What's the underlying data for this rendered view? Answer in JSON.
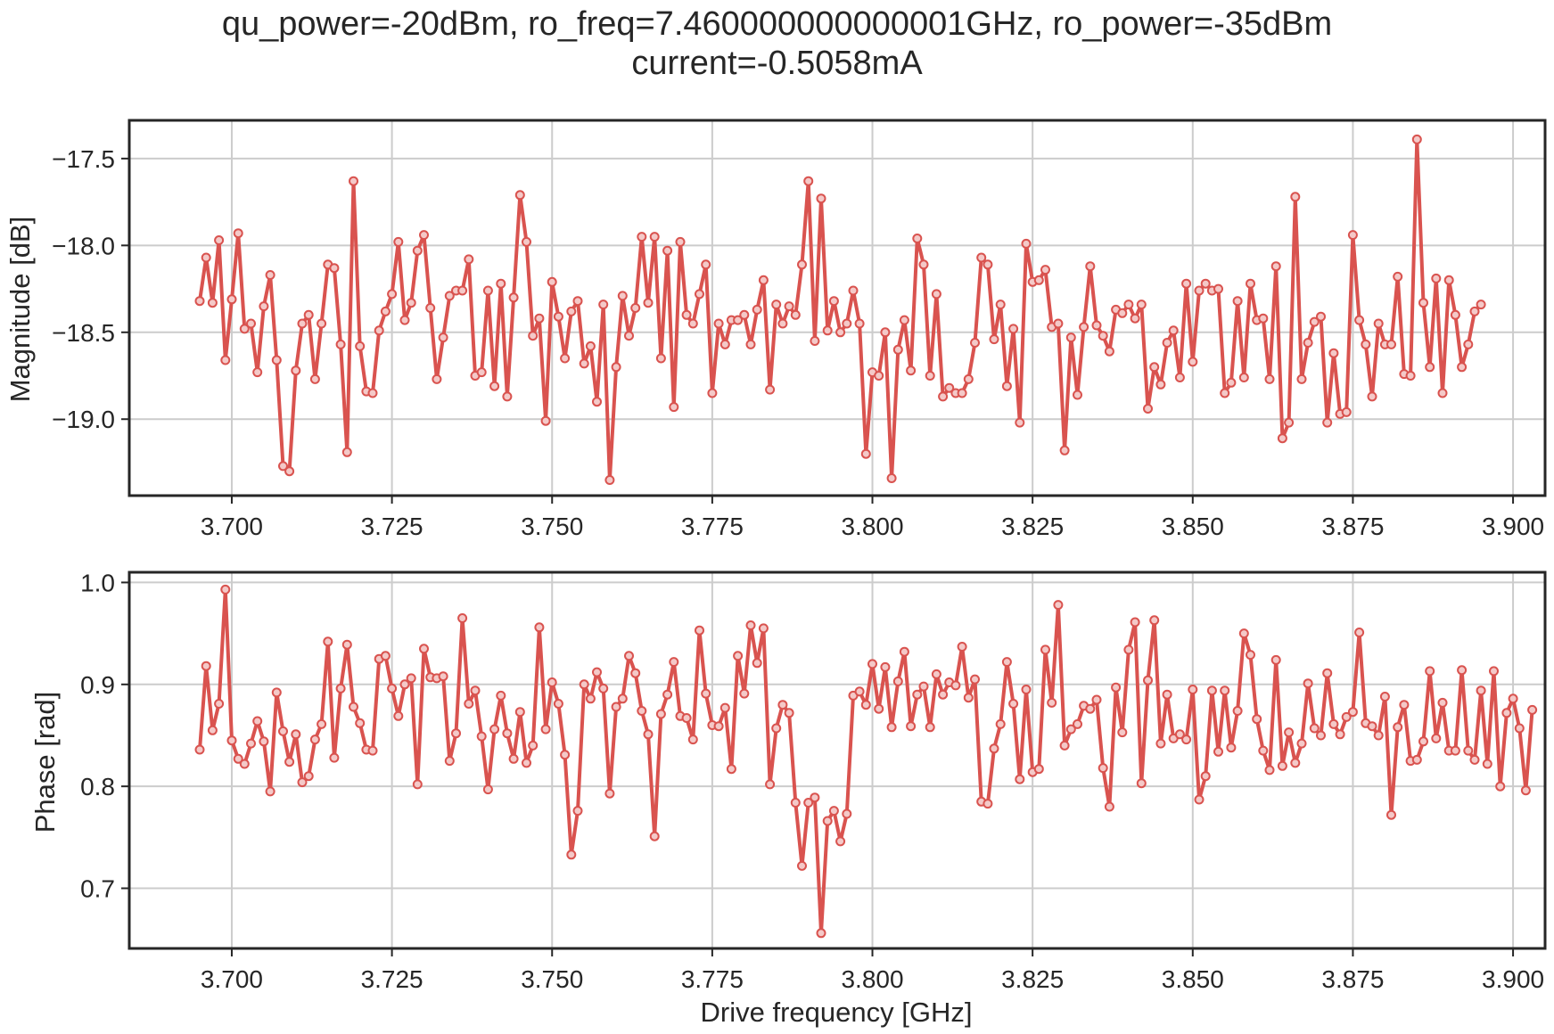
{
  "figure": {
    "title_line1": "qu_power=-20dBm, ro_freq=7.460000000000001GHz, ro_power=-35dBm",
    "title_line2": "current=-0.5058mA"
  },
  "colors": {
    "series": "#d9534f",
    "grid": "#cccccc",
    "frame": "#262626"
  },
  "chart_data": [
    {
      "type": "line",
      "marker": "circle",
      "grid": true,
      "title": "",
      "xlabel": "",
      "ylabel": "Magnitude [dB]",
      "xlim": [
        3.684,
        3.905
      ],
      "ylim": [
        -19.44,
        -17.28
      ],
      "xticks": [
        3.7,
        3.725,
        3.75,
        3.775,
        3.8,
        3.825,
        3.85,
        3.875,
        3.9
      ],
      "xtick_labels": [
        "3.700",
        "3.725",
        "3.750",
        "3.775",
        "3.800",
        "3.825",
        "3.850",
        "3.875",
        "3.900"
      ],
      "yticks": [
        -17.5,
        -18.0,
        -18.5,
        -19.0
      ],
      "ytick_labels": [
        "−17.5",
        "−18.0",
        "−18.5",
        "−19.0"
      ],
      "x_start": 3.695,
      "x_step": 0.001,
      "values": [
        -18.32,
        -18.07,
        -18.33,
        -17.97,
        -18.66,
        -18.31,
        -17.93,
        -18.48,
        -18.45,
        -18.73,
        -18.35,
        -18.17,
        -18.66,
        -19.27,
        -19.3,
        -18.72,
        -18.45,
        -18.4,
        -18.77,
        -18.45,
        -18.11,
        -18.13,
        -18.57,
        -19.19,
        -17.63,
        -18.58,
        -18.84,
        -18.85,
        -18.49,
        -18.38,
        -18.28,
        -17.98,
        -18.43,
        -18.33,
        -18.03,
        -17.94,
        -18.36,
        -18.77,
        -18.53,
        -18.29,
        -18.26,
        -18.26,
        -18.08,
        -18.75,
        -18.73,
        -18.26,
        -18.81,
        -18.22,
        -18.87,
        -18.3,
        -17.71,
        -17.98,
        -18.52,
        -18.42,
        -19.01,
        -18.21,
        -18.41,
        -18.65,
        -18.38,
        -18.32,
        -18.68,
        -18.58,
        -18.9,
        -18.34,
        -19.35,
        -18.7,
        -18.29,
        -18.52,
        -18.36,
        -17.95,
        -18.33,
        -17.95,
        -18.65,
        -18.03,
        -18.93,
        -17.98,
        -18.4,
        -18.45,
        -18.28,
        -18.11,
        -18.85,
        -18.45,
        -18.57,
        -18.43,
        -18.43,
        -18.4,
        -18.57,
        -18.37,
        -18.2,
        -18.83,
        -18.34,
        -18.45,
        -18.35,
        -18.4,
        -18.11,
        -17.63,
        -18.55,
        -17.73,
        -18.49,
        -18.32,
        -18.5,
        -18.45,
        -18.26,
        -18.45,
        -19.2,
        -18.73,
        -18.75,
        -18.5,
        -19.34,
        -18.6,
        -18.43,
        -18.72,
        -17.96,
        -18.11,
        -18.75,
        -18.28,
        -18.87,
        -18.82,
        -18.85,
        -18.85,
        -18.77,
        -18.56,
        -18.07,
        -18.11,
        -18.54,
        -18.34,
        -18.81,
        -18.48,
        -19.02,
        -17.99,
        -18.21,
        -18.2,
        -18.14,
        -18.47,
        -18.45,
        -19.18,
        -18.53,
        -18.86,
        -18.47,
        -18.12,
        -18.46,
        -18.52,
        -18.61,
        -18.37,
        -18.39,
        -18.34,
        -18.42,
        -18.34,
        -18.94,
        -18.7,
        -18.8,
        -18.56,
        -18.49,
        -18.76,
        -18.22,
        -18.67,
        -18.26,
        -18.22,
        -18.26,
        -18.25,
        -18.85,
        -18.79,
        -18.32,
        -18.76,
        -18.22,
        -18.43,
        -18.42,
        -18.77,
        -18.12,
        -19.11,
        -19.02,
        -17.72,
        -18.77,
        -18.56,
        -18.44,
        -18.41,
        -19.02,
        -18.62,
        -18.97,
        -18.96,
        -17.94,
        -18.43,
        -18.57,
        -18.87,
        -18.45,
        -18.57,
        -18.57,
        -18.18,
        -18.74,
        -18.75,
        -17.39,
        -18.33,
        -18.7,
        -18.19,
        -18.85,
        -18.2,
        -18.4,
        -18.7,
        -18.57,
        -18.38,
        -18.34
      ]
    },
    {
      "type": "line",
      "marker": "circle",
      "grid": true,
      "title": "",
      "xlabel": "Drive frequency [GHz]",
      "ylabel": "Phase [rad]",
      "xlim": [
        3.684,
        3.905
      ],
      "ylim": [
        0.641,
        1.01
      ],
      "xticks": [
        3.7,
        3.725,
        3.75,
        3.775,
        3.8,
        3.825,
        3.85,
        3.875,
        3.9
      ],
      "xtick_labels": [
        "3.700",
        "3.725",
        "3.750",
        "3.775",
        "3.800",
        "3.825",
        "3.850",
        "3.875",
        "3.900"
      ],
      "yticks": [
        1.0,
        0.9,
        0.8,
        0.7
      ],
      "ytick_labels": [
        "1.0",
        "0.9",
        "0.8",
        "0.7"
      ],
      "x_start": 3.695,
      "x_step": 0.001,
      "values": [
        0.836,
        0.918,
        0.855,
        0.881,
        0.993,
        0.845,
        0.827,
        0.822,
        0.842,
        0.864,
        0.844,
        0.795,
        0.892,
        0.854,
        0.824,
        0.851,
        0.804,
        0.81,
        0.846,
        0.861,
        0.942,
        0.828,
        0.896,
        0.939,
        0.878,
        0.862,
        0.836,
        0.835,
        0.925,
        0.928,
        0.896,
        0.869,
        0.9,
        0.906,
        0.802,
        0.935,
        0.907,
        0.906,
        0.908,
        0.825,
        0.852,
        0.965,
        0.881,
        0.894,
        0.849,
        0.797,
        0.856,
        0.889,
        0.852,
        0.827,
        0.873,
        0.823,
        0.84,
        0.956,
        0.856,
        0.902,
        0.881,
        0.831,
        0.733,
        0.776,
        0.9,
        0.886,
        0.912,
        0.896,
        0.793,
        0.878,
        0.886,
        0.928,
        0.911,
        0.874,
        0.851,
        0.751,
        0.871,
        0.89,
        0.922,
        0.869,
        0.867,
        0.846,
        0.953,
        0.891,
        0.86,
        0.859,
        0.877,
        0.817,
        0.928,
        0.891,
        0.958,
        0.921,
        0.955,
        0.802,
        0.857,
        0.88,
        0.872,
        0.784,
        0.722,
        0.784,
        0.789,
        0.656,
        0.766,
        0.776,
        0.746,
        0.773,
        0.889,
        0.893,
        0.88,
        0.92,
        0.876,
        0.917,
        0.858,
        0.903,
        0.932,
        0.859,
        0.89,
        0.898,
        0.858,
        0.91,
        0.89,
        0.902,
        0.899,
        0.937,
        0.887,
        0.905,
        0.785,
        0.783,
        0.837,
        0.861,
        0.922,
        0.881,
        0.807,
        0.895,
        0.814,
        0.817,
        0.934,
        0.882,
        0.978,
        0.84,
        0.856,
        0.861,
        0.879,
        0.876,
        0.885,
        0.818,
        0.78,
        0.897,
        0.853,
        0.934,
        0.961,
        0.803,
        0.904,
        0.963,
        0.842,
        0.89,
        0.847,
        0.851,
        0.846,
        0.895,
        0.787,
        0.81,
        0.894,
        0.834,
        0.894,
        0.838,
        0.874,
        0.95,
        0.929,
        0.866,
        0.835,
        0.816,
        0.924,
        0.82,
        0.853,
        0.823,
        0.842,
        0.901,
        0.857,
        0.85,
        0.911,
        0.861,
        0.851,
        0.868,
        0.873,
        0.951,
        0.862,
        0.859,
        0.85,
        0.888,
        0.772,
        0.858,
        0.88,
        0.825,
        0.826,
        0.844,
        0.913,
        0.847,
        0.882,
        0.835,
        0.835,
        0.914,
        0.835,
        0.826,
        0.894,
        0.822,
        0.913,
        0.8,
        0.872,
        0.886,
        0.857,
        0.796,
        0.875
      ]
    }
  ]
}
